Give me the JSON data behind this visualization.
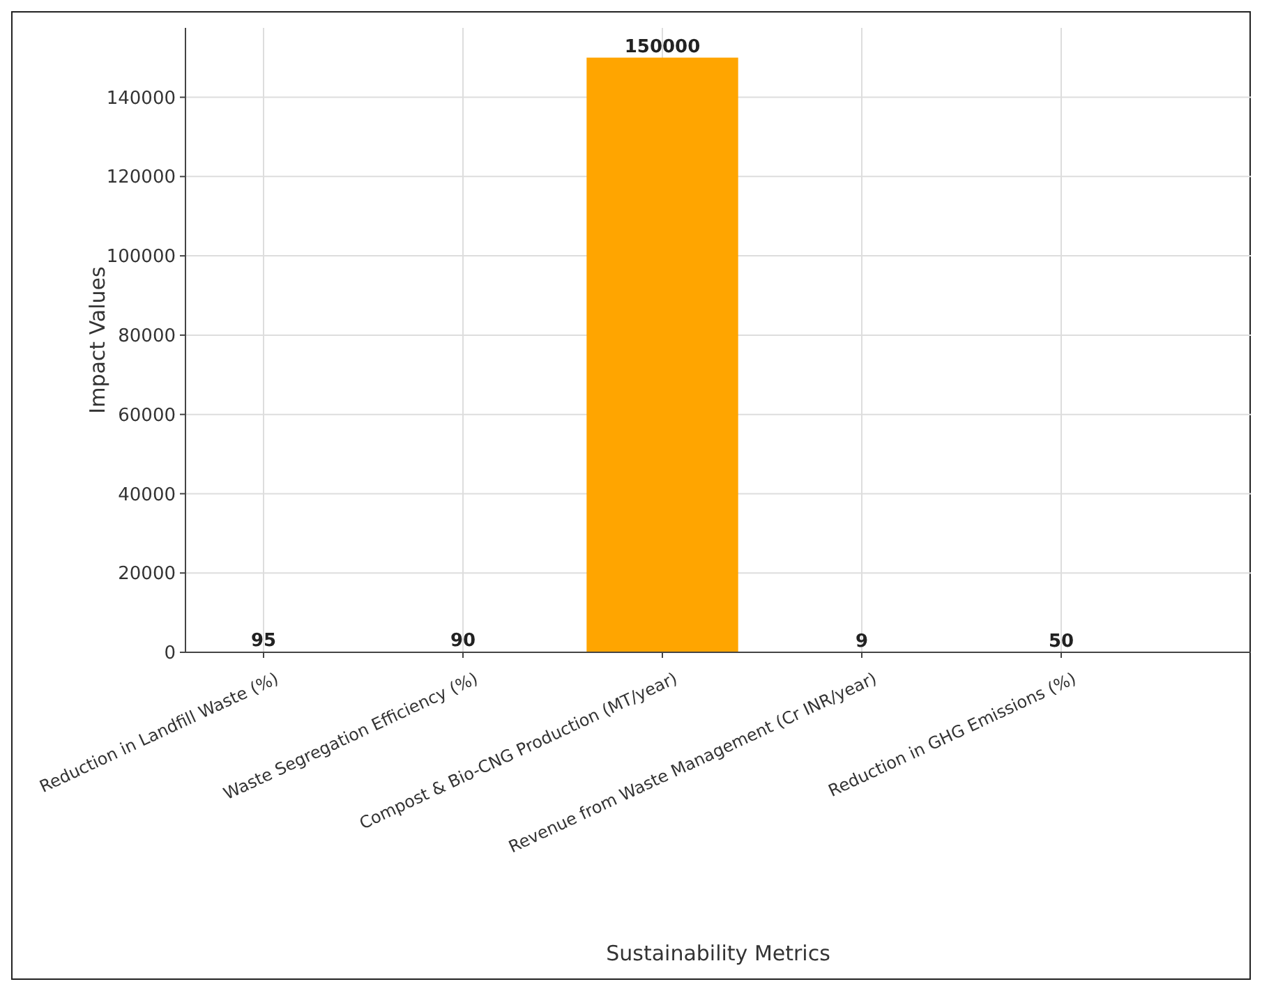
{
  "chart_data": {
    "type": "bar",
    "xlabel": "Sustainability Metrics",
    "ylabel": "Impact Values",
    "categories": [
      "Reduction in Landfill Waste (%)",
      "Waste Segregation Efficiency (%)",
      "Compost & Bio-CNG Production (MT/year)",
      "Revenue from Waste Management (Cr INR/year)",
      "Reduction in GHG Emissions (%)"
    ],
    "values": [
      95,
      90,
      150000,
      9,
      50
    ],
    "color": "#ffa500",
    "ylim": [
      0,
      157500
    ],
    "yticks": [
      0,
      20000,
      40000,
      60000,
      80000,
      100000,
      120000,
      140000
    ],
    "grid": true,
    "data_labels": true
  }
}
